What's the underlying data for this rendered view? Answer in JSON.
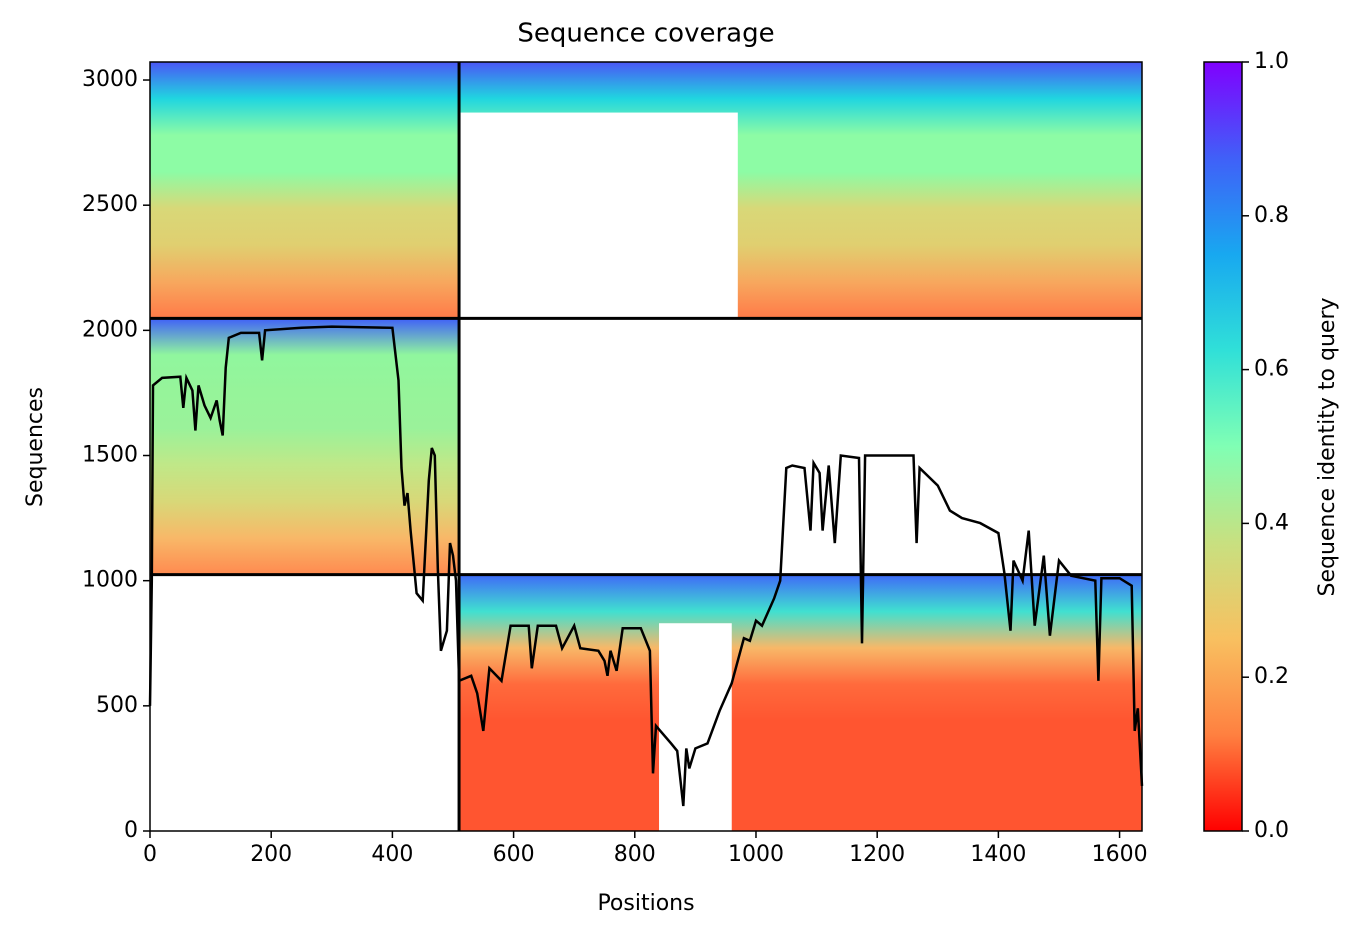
{
  "chart_data": {
    "type": "coverage",
    "title": "Sequence coverage",
    "x_label": "Positions",
    "y_label": "Sequences",
    "xlim": [
      0,
      1637
    ],
    "ylim": [
      0,
      3072
    ],
    "xticks": [
      0,
      200,
      400,
      600,
      800,
      1000,
      1200,
      1400,
      1600
    ],
    "yticks": [
      0,
      500,
      1000,
      1500,
      2000,
      2500,
      3000
    ],
    "blocks": [
      {
        "x": [
          0,
          510
        ],
        "y": [
          2048,
          3072
        ],
        "colors": [
          "#ff7a48",
          "#f7a85e",
          "#e0cf70",
          "#d8d878",
          "#8dfca5",
          "#8dfca5",
          "#20d6e0",
          "#4a56f6"
        ]
      },
      {
        "x": [
          510,
          1637
        ],
        "y": [
          2048,
          3072
        ],
        "colors": [
          "#ff7a48",
          "#f7a85e",
          "#e0cf70",
          "#d8d878",
          "#8dfca5",
          "#8dfca5",
          "#20d6e0",
          "#4a56f6"
        ]
      },
      {
        "x": [
          510,
          970
        ],
        "y": [
          2048,
          2870
        ],
        "colors": [
          "#ffffff"
        ]
      },
      {
        "x": [
          0,
          510
        ],
        "y": [
          1024,
          2048
        ],
        "colors": [
          "#ff8a50",
          "#f8b868",
          "#d8d878",
          "#c0e888",
          "#9af29a",
          "#96f49a",
          "#90f69e",
          "#4060f8"
        ]
      },
      {
        "x": [
          510,
          1637
        ],
        "y": [
          0,
          1024
        ],
        "colors": [
          "#ff5530",
          "#ff5530",
          "#ff5530",
          "#ff5530",
          "#ff6a3c",
          "#f8b868",
          "#40e0d0",
          "#3f6af8"
        ]
      },
      {
        "x": [
          840,
          960
        ],
        "y": [
          0,
          830
        ],
        "colors": [
          "#ffffff"
        ]
      }
    ],
    "dividers": {
      "x": [
        510
      ],
      "y": [
        1024,
        2048
      ]
    },
    "line_color": "#000000",
    "coverage": {
      "x": [
        0,
        3,
        5,
        20,
        50,
        55,
        60,
        70,
        75,
        80,
        90,
        100,
        110,
        115,
        120,
        125,
        130,
        150,
        180,
        185,
        190,
        250,
        300,
        400,
        410,
        415,
        420,
        425,
        430,
        440,
        450,
        460,
        465,
        470,
        475,
        480,
        490,
        495,
        500,
        505,
        510,
        530,
        540,
        550,
        560,
        580,
        595,
        625,
        630,
        640,
        670,
        680,
        700,
        710,
        740,
        750,
        755,
        760,
        770,
        780,
        810,
        825,
        830,
        835,
        860,
        870,
        880,
        885,
        890,
        900,
        920,
        940,
        960,
        980,
        990,
        1000,
        1010,
        1030,
        1040,
        1045,
        1050,
        1060,
        1080,
        1090,
        1095,
        1105,
        1110,
        1120,
        1130,
        1140,
        1170,
        1175,
        1180,
        1260,
        1265,
        1270,
        1300,
        1320,
        1340,
        1370,
        1400,
        1410,
        1420,
        1425,
        1440,
        1450,
        1460,
        1475,
        1485,
        1500,
        1520,
        1560,
        1565,
        1570,
        1600,
        1620,
        1625,
        1630,
        1637
      ],
      "values": [
        500,
        1000,
        1780,
        1810,
        1815,
        1690,
        1810,
        1760,
        1600,
        1780,
        1700,
        1650,
        1720,
        1640,
        1580,
        1850,
        1970,
        1990,
        1990,
        1880,
        2000,
        2010,
        2015,
        2010,
        1800,
        1450,
        1300,
        1350,
        1200,
        950,
        920,
        1400,
        1530,
        1500,
        1050,
        720,
        800,
        1150,
        1100,
        1000,
        600,
        620,
        550,
        400,
        650,
        600,
        820,
        820,
        650,
        820,
        820,
        730,
        820,
        730,
        720,
        680,
        620,
        720,
        640,
        810,
        810,
        720,
        230,
        420,
        350,
        320,
        100,
        330,
        250,
        330,
        350,
        480,
        590,
        770,
        760,
        840,
        820,
        930,
        1000,
        1230,
        1450,
        1460,
        1450,
        1200,
        1470,
        1430,
        1200,
        1460,
        1150,
        1500,
        1490,
        750,
        1500,
        1500,
        1150,
        1450,
        1380,
        1280,
        1250,
        1230,
        1190,
        1030,
        800,
        1080,
        1000,
        1200,
        820,
        1100,
        780,
        1080,
        1020,
        1000,
        600,
        1010,
        1010,
        980,
        400,
        490,
        180
      ]
    },
    "colorbar": {
      "label": "Sequence identity to query",
      "lim": [
        0,
        1
      ],
      "ticks": [
        {
          "value": 0,
          "label": "0.0"
        },
        0.2,
        0.4,
        0.6,
        0.8,
        {
          "value": 1,
          "label": "1.0"
        }
      ],
      "colors": [
        "#ff0000",
        "#ff8040",
        "#f8c060",
        "#c8e080",
        "#80ffb4",
        "#30e0d8",
        "#18a8f0",
        "#4060f8",
        "#8000ff"
      ]
    }
  }
}
